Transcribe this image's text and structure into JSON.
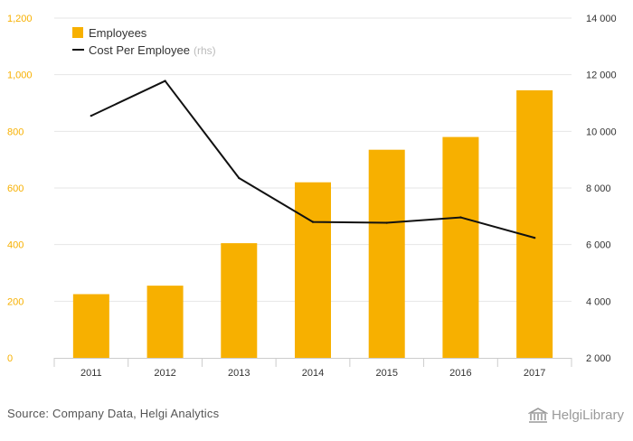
{
  "chart_data": {
    "type": "bar+line",
    "categories": [
      "2011",
      "2012",
      "2013",
      "2014",
      "2015",
      "2016",
      "2017"
    ],
    "series": [
      {
        "name": "Employees",
        "type": "bar",
        "axis": "left",
        "color": "#f7b000",
        "values": [
          225,
          255,
          405,
          620,
          735,
          780,
          945
        ]
      },
      {
        "name": "Cost Per Employee",
        "suffix": "(rhs)",
        "type": "line",
        "axis": "right",
        "color": "#111111",
        "values": [
          10550,
          11780,
          8350,
          6800,
          6770,
          6960,
          6240
        ]
      }
    ],
    "left_axis": {
      "ylim": [
        0,
        1200
      ],
      "ticks": [
        "0",
        "200",
        "400",
        "600",
        "800",
        "1,000",
        "1,200"
      ],
      "tick_values": [
        0,
        200,
        400,
        600,
        800,
        1000,
        1200
      ],
      "color": "#f7b000"
    },
    "right_axis": {
      "ylim": [
        2000,
        14000
      ],
      "ticks": [
        "2 000",
        "4 000",
        "6 000",
        "8 000",
        "10 000",
        "12 000",
        "14 000"
      ],
      "tick_values": [
        2000,
        4000,
        6000,
        8000,
        10000,
        12000,
        14000
      ],
      "color": "#333333"
    },
    "legend_position": "top-left",
    "grid": true
  },
  "footer": {
    "source": "Source: Company Data, Helgi Analytics",
    "logo_text": "HelgiLibrary"
  }
}
